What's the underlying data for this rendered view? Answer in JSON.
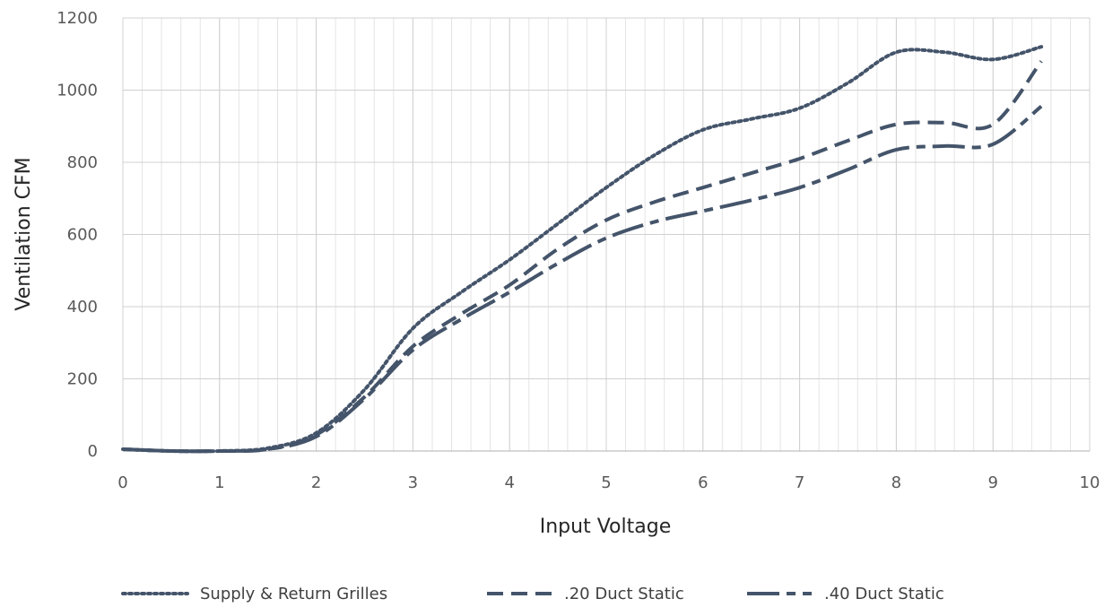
{
  "chart_data": {
    "type": "line",
    "title": "",
    "xlabel": "Input Voltage",
    "ylabel": "Ventilation CFM",
    "xlim": [
      0,
      10
    ],
    "ylim": [
      0,
      1200
    ],
    "x_ticks": [
      0,
      1,
      2,
      3,
      4,
      5,
      6,
      7,
      8,
      9,
      10
    ],
    "y_ticks": [
      0,
      200,
      400,
      600,
      800,
      1000,
      1200
    ],
    "grid": "on (major and minor vertical, major horizontal)",
    "legend_position": "bottom",
    "line_color": "#44546a",
    "series": [
      {
        "name": "Supply & Return Grilles",
        "style": "dotted",
        "points": [
          [
            0,
            5
          ],
          [
            0.5,
            0
          ],
          [
            1,
            0
          ],
          [
            1.5,
            8
          ],
          [
            2,
            50
          ],
          [
            2.5,
            170
          ],
          [
            3,
            340
          ],
          [
            3.5,
            440
          ],
          [
            4,
            530
          ],
          [
            4.5,
            630
          ],
          [
            5,
            730
          ],
          [
            5.5,
            820
          ],
          [
            6,
            890
          ],
          [
            6.5,
            920
          ],
          [
            7,
            950
          ],
          [
            7.5,
            1020
          ],
          [
            8,
            1105
          ],
          [
            8.5,
            1105
          ],
          [
            9,
            1085
          ],
          [
            9.5,
            1120
          ]
        ]
      },
      {
        "name": ".20 Duct Static",
        "style": "dashed",
        "points": [
          [
            0,
            5
          ],
          [
            0.5,
            0
          ],
          [
            1,
            0
          ],
          [
            1.5,
            5
          ],
          [
            2,
            45
          ],
          [
            2.5,
            150
          ],
          [
            3,
            290
          ],
          [
            3.5,
            380
          ],
          [
            4,
            460
          ],
          [
            4.5,
            560
          ],
          [
            5,
            640
          ],
          [
            5.5,
            690
          ],
          [
            6,
            730
          ],
          [
            6.5,
            770
          ],
          [
            7,
            810
          ],
          [
            7.5,
            860
          ],
          [
            8,
            905
          ],
          [
            8.5,
            910
          ],
          [
            9,
            905
          ],
          [
            9.5,
            1080
          ]
        ]
      },
      {
        "name": ".40 Duct Static",
        "style": "long-dash-dot",
        "points": [
          [
            0,
            5
          ],
          [
            0.5,
            0
          ],
          [
            1,
            0
          ],
          [
            1.5,
            5
          ],
          [
            2,
            40
          ],
          [
            2.5,
            145
          ],
          [
            3,
            280
          ],
          [
            3.5,
            365
          ],
          [
            4,
            440
          ],
          [
            4.5,
            520
          ],
          [
            5,
            590
          ],
          [
            5.5,
            635
          ],
          [
            6,
            665
          ],
          [
            6.5,
            695
          ],
          [
            7,
            730
          ],
          [
            7.5,
            780
          ],
          [
            8,
            835
          ],
          [
            8.5,
            845
          ],
          [
            9,
            850
          ],
          [
            9.5,
            955
          ]
        ]
      }
    ]
  }
}
